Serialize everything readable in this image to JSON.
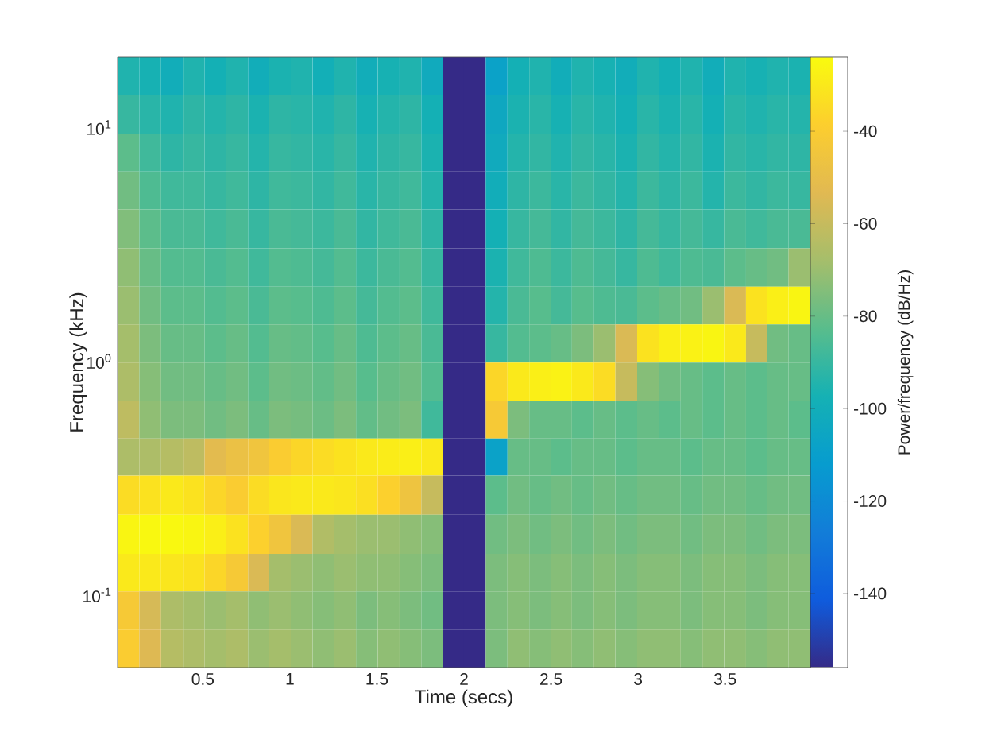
{
  "chart_data": {
    "type": "heatmap",
    "xlabel": "Time (secs)",
    "ylabel": "Frequency (kHz)",
    "clabel": "Power/frequency (dB/Hz)",
    "log": "y",
    "xlim": [
      0.01,
      3.99
    ],
    "ylim": [
      0.049,
      20
    ],
    "xticks": [
      0.5,
      1,
      1.5,
      2,
      2.5,
      3,
      3.5
    ],
    "yticks": [
      {
        "value": 0.1,
        "label": "10$^{-1}$"
      },
      {
        "value": 1,
        "label": "10$^{0}$"
      },
      {
        "value": 10,
        "label": "10$^{1}$"
      }
    ],
    "clim": [
      -156,
      -24
    ],
    "cticks": [
      -140,
      -120,
      -100,
      -80,
      -60,
      -40
    ],
    "x": [
      0.07,
      0.2,
      0.32,
      0.45,
      0.57,
      0.7,
      0.82,
      0.94,
      1.07,
      1.19,
      1.32,
      1.44,
      1.57,
      1.69,
      1.82,
      1.94,
      2.06,
      2.19,
      2.31,
      2.44,
      2.56,
      2.68,
      2.81,
      2.93,
      3.06,
      3.18,
      3.31,
      3.43,
      3.56,
      3.68,
      3.8,
      3.93
    ],
    "y": [
      16.6,
      11.4,
      7.8,
      5.4,
      3.7,
      2.5,
      1.74,
      1.19,
      0.82,
      0.56,
      0.39,
      0.27,
      0.18,
      0.125,
      0.086,
      0.059
    ],
    "cells": [
      [
        -95,
        -97,
        -100,
        -95,
        -98,
        -95,
        -100,
        -96,
        -95,
        -99,
        -95,
        -100,
        -97,
        -95,
        -102,
        -156,
        -156,
        -108,
        -98,
        -95,
        -100,
        -95,
        -97,
        -100,
        -95,
        -98,
        -95,
        -100,
        -95,
        -97,
        -95,
        -96
      ],
      [
        -90,
        -93,
        -95,
        -92,
        -94,
        -92,
        -96,
        -92,
        -93,
        -95,
        -92,
        -97,
        -94,
        -92,
        -98,
        -156,
        -156,
        -104,
        -96,
        -93,
        -97,
        -93,
        -95,
        -98,
        -93,
        -96,
        -93,
        -98,
        -93,
        -95,
        -93,
        -94
      ],
      [
        -82,
        -88,
        -92,
        -90,
        -92,
        -90,
        -94,
        -90,
        -91,
        -93,
        -90,
        -95,
        -92,
        -90,
        -96,
        -156,
        -156,
        -102,
        -94,
        -91,
        -95,
        -91,
        -93,
        -96,
        -91,
        -94,
        -91,
        -96,
        -91,
        -93,
        -91,
        -92
      ],
      [
        -78,
        -85,
        -88,
        -88,
        -90,
        -88,
        -92,
        -88,
        -89,
        -91,
        -88,
        -93,
        -90,
        -88,
        -94,
        -156,
        -156,
        -100,
        -92,
        -89,
        -93,
        -89,
        -91,
        -94,
        -89,
        -92,
        -89,
        -94,
        -89,
        -91,
        -89,
        -90
      ],
      [
        -75,
        -82,
        -86,
        -86,
        -88,
        -86,
        -90,
        -86,
        -87,
        -89,
        -86,
        -91,
        -88,
        -86,
        -92,
        -156,
        -156,
        -98,
        -90,
        -87,
        -91,
        -87,
        -89,
        -92,
        -87,
        -90,
        -87,
        -90,
        -86,
        -88,
        -86,
        -86
      ],
      [
        -72,
        -80,
        -84,
        -84,
        -86,
        -84,
        -88,
        -84,
        -85,
        -87,
        -84,
        -89,
        -86,
        -84,
        -90,
        -156,
        -156,
        -96,
        -88,
        -85,
        -89,
        -85,
        -87,
        -90,
        -85,
        -88,
        -85,
        -86,
        -82,
        -80,
        -78,
        -70
      ],
      [
        -70,
        -78,
        -82,
        -82,
        -84,
        -82,
        -86,
        -82,
        -83,
        -85,
        -82,
        -87,
        -84,
        -82,
        -88,
        -156,
        -156,
        -94,
        -86,
        -83,
        -87,
        -83,
        -85,
        -86,
        -82,
        -80,
        -78,
        -70,
        -55,
        -32,
        -28,
        -26
      ],
      [
        -68,
        -76,
        -80,
        -80,
        -82,
        -80,
        -84,
        -80,
        -81,
        -83,
        -80,
        -85,
        -82,
        -80,
        -86,
        -156,
        -156,
        -90,
        -84,
        -82,
        -80,
        -76,
        -70,
        -55,
        -32,
        -28,
        -27,
        -26,
        -30,
        -60,
        -78,
        -80
      ],
      [
        -66,
        -74,
        -78,
        -78,
        -80,
        -78,
        -82,
        -78,
        -79,
        -81,
        -78,
        -83,
        -80,
        -78,
        -84,
        -156,
        -156,
        -36,
        -30,
        -28,
        -27,
        -30,
        -34,
        -60,
        -74,
        -78,
        -80,
        -82,
        -80,
        -82,
        -80,
        -80
      ],
      [
        -62,
        -72,
        -76,
        -76,
        -78,
        -76,
        -80,
        -76,
        -77,
        -79,
        -76,
        -81,
        -78,
        -76,
        -88,
        -156,
        -156,
        -42,
        -76,
        -80,
        -80,
        -82,
        -80,
        -82,
        -80,
        -82,
        -80,
        -82,
        -80,
        -82,
        -80,
        -82
      ],
      [
        -66,
        -66,
        -64,
        -62,
        -52,
        -48,
        -45,
        -40,
        -36,
        -34,
        -32,
        -30,
        -29,
        -28,
        -30,
        -156,
        -156,
        -108,
        -80,
        -80,
        -82,
        -80,
        -80,
        -82,
        -80,
        -80,
        -82,
        -80,
        -80,
        -82,
        -80,
        -80
      ],
      [
        -34,
        -32,
        -30,
        -32,
        -36,
        -40,
        -34,
        -31,
        -30,
        -30,
        -31,
        -33,
        -38,
        -46,
        -60,
        -156,
        -156,
        -82,
        -78,
        -80,
        -78,
        -80,
        -78,
        -80,
        -78,
        -78,
        -80,
        -78,
        -78,
        -80,
        -78,
        -78
      ],
      [
        -26,
        -25,
        -25,
        -26,
        -28,
        -32,
        -38,
        -45,
        -55,
        -65,
        -68,
        -70,
        -70,
        -72,
        -74,
        -156,
        -156,
        -78,
        -76,
        -78,
        -76,
        -78,
        -76,
        -78,
        -76,
        -76,
        -78,
        -76,
        -76,
        -78,
        -76,
        -76
      ],
      [
        -30,
        -30,
        -31,
        -32,
        -36,
        -42,
        -55,
        -68,
        -70,
        -72,
        -70,
        -72,
        -72,
        -74,
        -76,
        -156,
        -156,
        -76,
        -74,
        -76,
        -74,
        -76,
        -74,
        -76,
        -74,
        -74,
        -76,
        -74,
        -74,
        -76,
        -74,
        -74
      ],
      [
        -42,
        -56,
        -66,
        -68,
        -70,
        -68,
        -72,
        -70,
        -72,
        -74,
        -72,
        -76,
        -74,
        -76,
        -78,
        -156,
        -156,
        -76,
        -74,
        -76,
        -74,
        -76,
        -74,
        -76,
        -74,
        -74,
        -76,
        -74,
        -74,
        -76,
        -74,
        -74
      ],
      [
        -40,
        -54,
        -64,
        -66,
        -68,
        -66,
        -70,
        -68,
        -70,
        -72,
        -70,
        -74,
        -72,
        -74,
        -76,
        -156,
        -156,
        -76,
        -72,
        -74,
        -72,
        -74,
        -72,
        -74,
        -72,
        -72,
        -74,
        -72,
        -72,
        -74,
        -72,
        -72
      ]
    ]
  }
}
